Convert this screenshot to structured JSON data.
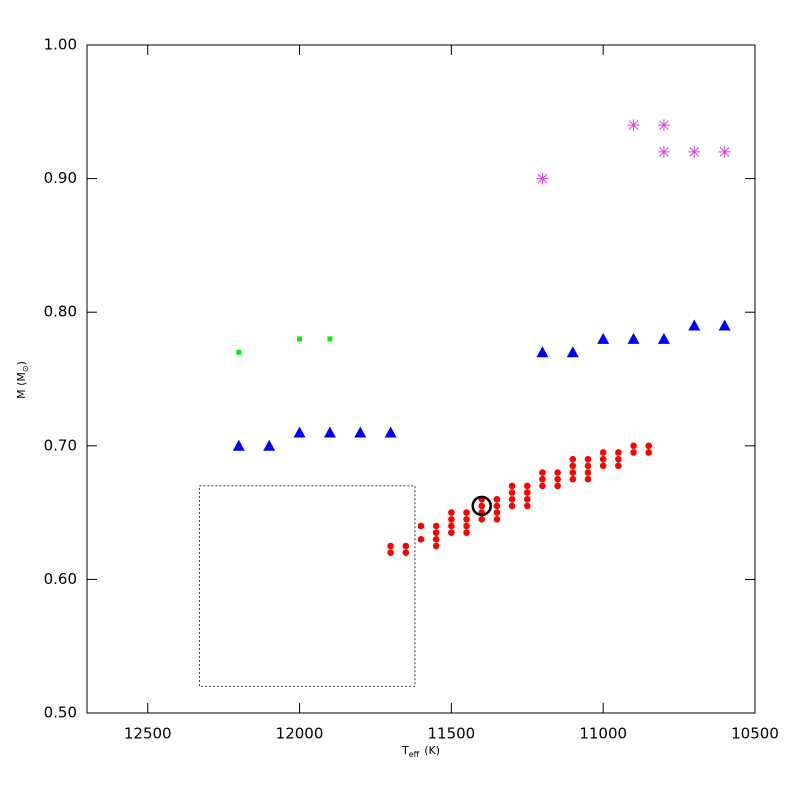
{
  "chart_data": {
    "type": "scatter",
    "x_label": {
      "main": "T",
      "sub": "eff",
      "unit": "(K)"
    },
    "y_label": {
      "main": "M (M",
      "sub": "⊙",
      "end": ")"
    },
    "xlim": [
      12700,
      10500
    ],
    "ylim": [
      0.5,
      1.0
    ],
    "xticks": [
      12500,
      12000,
      11500,
      11000,
      10500
    ],
    "yticks": [
      {
        "value": 0.5,
        "label": "0.50"
      },
      {
        "value": 0.6,
        "label": "0.60"
      },
      {
        "value": 0.7,
        "label": "0.70"
      },
      {
        "value": 0.8,
        "label": "0.80"
      },
      {
        "value": 0.9,
        "label": "0.90"
      },
      {
        "value": 1.0,
        "label": "1.00"
      }
    ],
    "series": [
      {
        "marker": "asterisk",
        "color": "#e040e0",
        "x": [
          11200,
          10900,
          10800,
          10800,
          10700,
          10600
        ],
        "y": [
          0.9,
          0.94,
          0.94,
          0.92,
          0.92,
          0.92
        ]
      },
      {
        "marker": "triangle",
        "color": "#0000ff",
        "x": [
          12200,
          12100,
          12000,
          11900,
          11800,
          11700,
          11200,
          11100,
          11000,
          10900,
          10800,
          10700,
          10600
        ],
        "y": [
          0.7,
          0.7,
          0.71,
          0.71,
          0.71,
          0.71,
          0.77,
          0.77,
          0.78,
          0.78,
          0.78,
          0.79,
          0.79
        ]
      },
      {
        "marker": "square",
        "color": "#00ee00",
        "x": [
          12200,
          12000,
          11900
        ],
        "y": [
          0.77,
          0.78,
          0.78
        ]
      },
      {
        "marker": "dot",
        "color": "#ff0000",
        "x": [
          11700,
          11700,
          11650,
          11650,
          11600,
          11600,
          11550,
          11550,
          11550,
          11550,
          11500,
          11500,
          11500,
          11500,
          11450,
          11450,
          11450,
          11450,
          11400,
          11400,
          11400,
          11400,
          11350,
          11350,
          11350,
          11350,
          11300,
          11300,
          11300,
          11300,
          11250,
          11250,
          11250,
          11250,
          11200,
          11200,
          11200,
          11150,
          11150,
          11150,
          11100,
          11100,
          11100,
          11100,
          11050,
          11050,
          11050,
          11050,
          11000,
          11000,
          11000,
          10950,
          10950,
          10950,
          10900,
          10900,
          10850,
          10850
        ],
        "y": [
          0.625,
          0.62,
          0.625,
          0.62,
          0.64,
          0.63,
          0.64,
          0.635,
          0.63,
          0.625,
          0.65,
          0.645,
          0.64,
          0.635,
          0.65,
          0.645,
          0.64,
          0.635,
          0.66,
          0.655,
          0.65,
          0.645,
          0.66,
          0.655,
          0.65,
          0.645,
          0.67,
          0.665,
          0.66,
          0.655,
          0.67,
          0.665,
          0.66,
          0.655,
          0.68,
          0.675,
          0.67,
          0.68,
          0.675,
          0.67,
          0.69,
          0.685,
          0.68,
          0.675,
          0.69,
          0.685,
          0.68,
          0.675,
          0.695,
          0.69,
          0.685,
          0.695,
          0.69,
          0.685,
          0.7,
          0.695,
          0.7,
          0.695
        ]
      },
      {
        "marker": "ring",
        "color": "#000000",
        "x": [
          11400
        ],
        "y": [
          0.655
        ]
      }
    ],
    "box": {
      "x": [
        12330,
        11620
      ],
      "y": [
        0.52,
        0.67
      ]
    }
  }
}
